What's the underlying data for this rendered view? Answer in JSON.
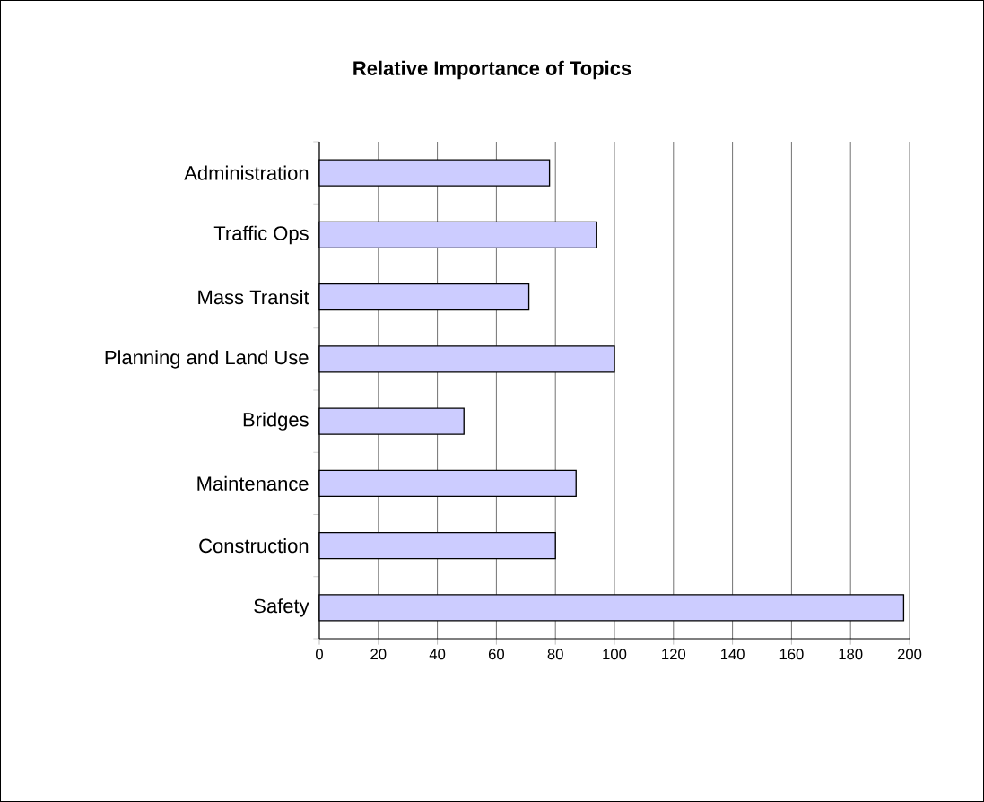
{
  "chart_data": {
    "type": "bar",
    "orientation": "horizontal",
    "title": "Relative Importance of Topics",
    "categories": [
      "Administration",
      "Traffic Ops",
      "Mass Transit",
      "Planning and Land Use",
      "Bridges",
      "Maintenance",
      "Construction",
      "Safety"
    ],
    "values": [
      78,
      94,
      71,
      100,
      49,
      87,
      80,
      198
    ],
    "color": "#ccccff",
    "xlim": [
      0,
      200
    ],
    "xticks": [
      0,
      20,
      40,
      60,
      80,
      100,
      120,
      140,
      160,
      180,
      200
    ],
    "grid": "x"
  }
}
